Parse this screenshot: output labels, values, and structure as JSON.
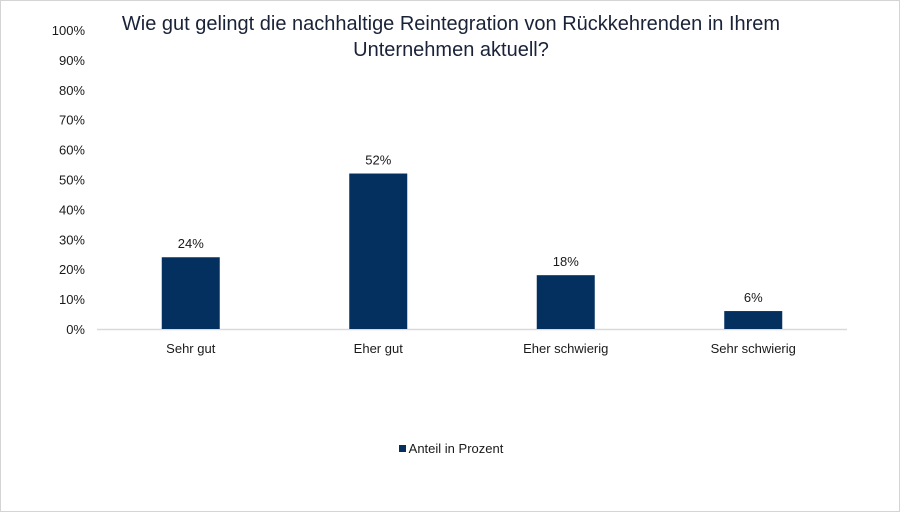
{
  "chart_data": {
    "type": "bar",
    "title": "Wie gut gelingt die nachhaltige Reintegration von Rückkehrenden in Ihrem Unternehmen aktuell?",
    "categories": [
      "Sehr gut",
      "Eher gut",
      "Eher schwierig",
      "Sehr schwierig"
    ],
    "series": [
      {
        "name": "Anteil in Prozent",
        "values": [
          24,
          52,
          18,
          6
        ],
        "color": "#03305f"
      }
    ],
    "data_labels": [
      "24%",
      "52%",
      "18%",
      "6%"
    ],
    "xlabel": "",
    "ylabel": "",
    "ylim": [
      0,
      100
    ],
    "yticks": [
      0,
      10,
      20,
      30,
      40,
      50,
      60,
      70,
      80,
      90,
      100
    ],
    "ytick_labels": [
      "0%",
      "10%",
      "20%",
      "30%",
      "40%",
      "50%",
      "60%",
      "70%",
      "80%",
      "90%",
      "100%"
    ],
    "grid": false,
    "legend_position": "bottom"
  }
}
